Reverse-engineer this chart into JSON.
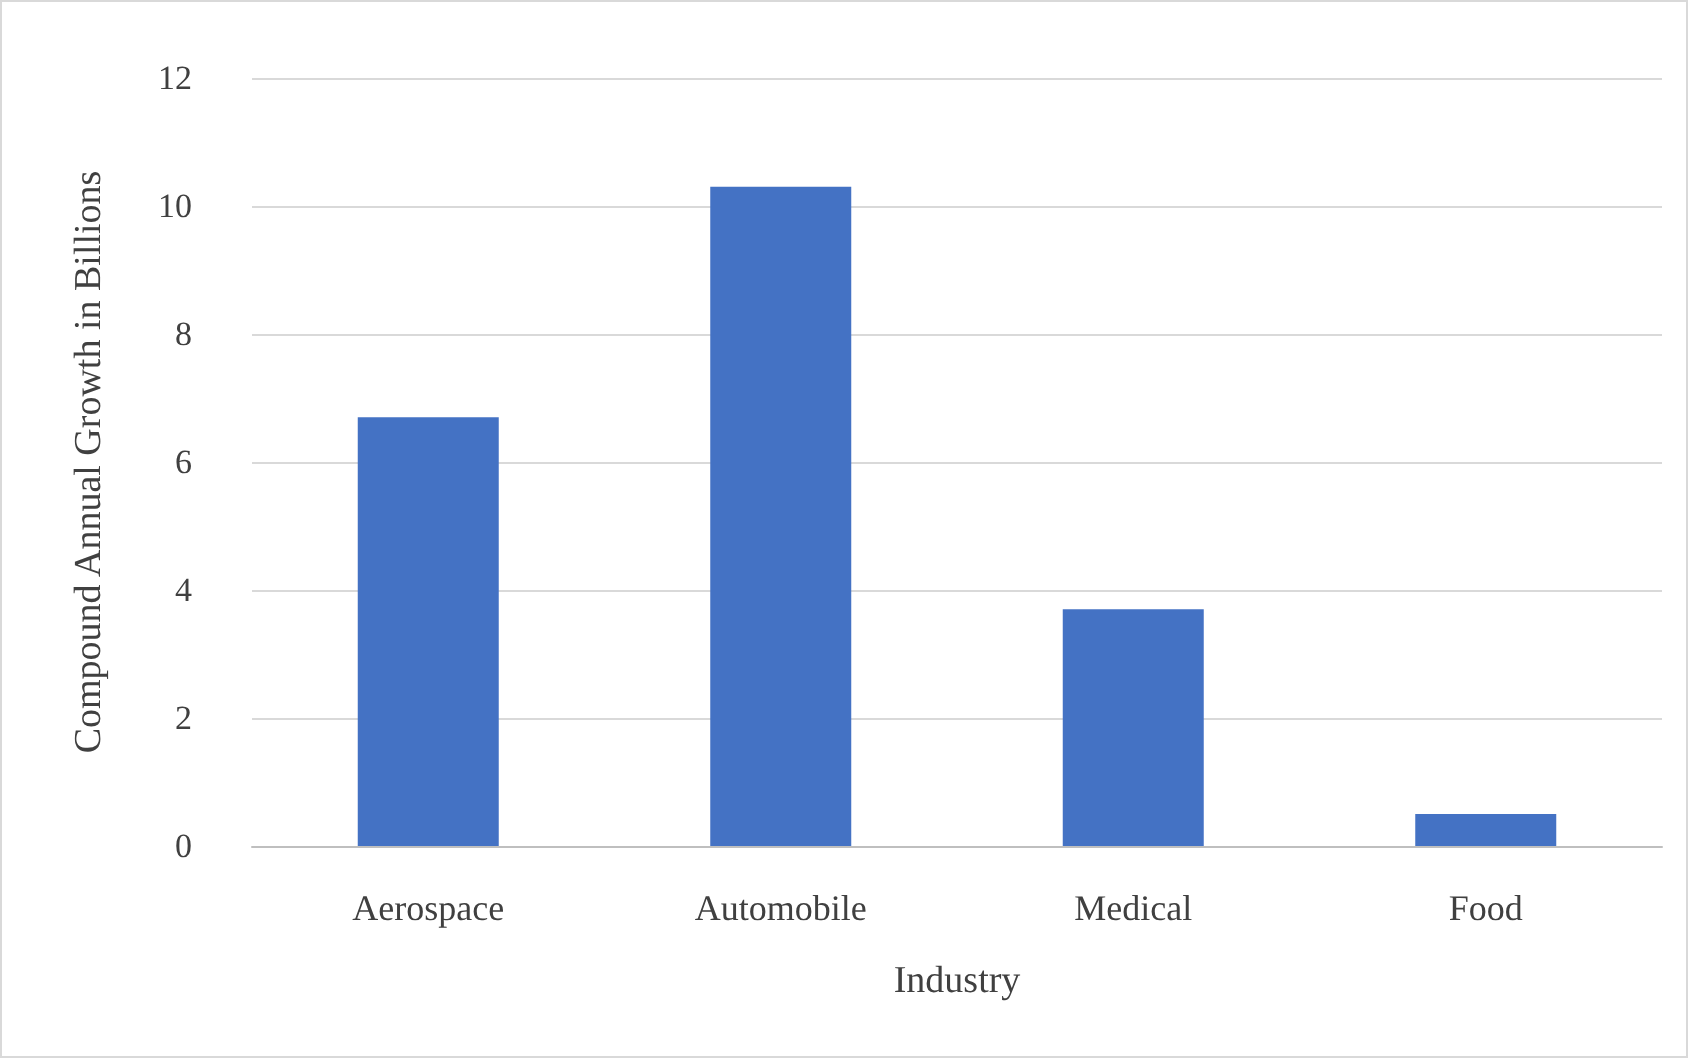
{
  "chart_data": {
    "type": "bar",
    "xlabel": "Industry",
    "ylabel": "Compound Annual Growth in Billions",
    "categories": [
      "Aerospace",
      "Automobile",
      "Medical",
      "Food"
    ],
    "values": [
      6.7,
      10.3,
      3.7,
      0.5
    ],
    "color": "#4472c4",
    "ylim": [
      0,
      12
    ],
    "yticks": [
      0,
      2,
      4,
      6,
      8,
      10,
      12
    ],
    "grid": "y"
  }
}
